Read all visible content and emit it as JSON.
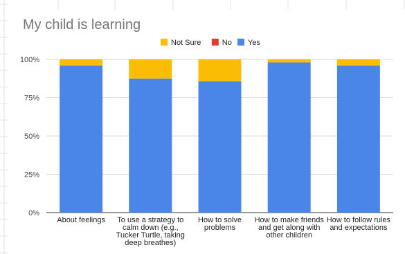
{
  "chart_data": {
    "type": "bar",
    "stacked": true,
    "normalized_percent": true,
    "title": "My child is learning",
    "categories": [
      "About feelings",
      "To use a strategy to calm down (e.g., Tucker Turtle, taking deep breathes)",
      "How to solve problems",
      "How to make friends and get along with other children",
      "How to follow rules and expectations"
    ],
    "category_lines": [
      [
        "About feelings"
      ],
      [
        "To use a strategy to",
        "calm down (e.g.,",
        "Tucker Turtle, taking",
        "deep breathes)"
      ],
      [
        "How to solve",
        "problems"
      ],
      [
        "How to make friends",
        "and get along with",
        "other children"
      ],
      [
        "How to follow rules",
        "and expectations"
      ]
    ],
    "series": [
      {
        "name": "Yes",
        "color": "#4a86e8",
        "values": [
          96,
          87.5,
          85.7,
          98,
          96
        ]
      },
      {
        "name": "No",
        "color": "#e53935",
        "values": [
          0,
          0,
          0,
          0,
          0
        ]
      },
      {
        "name": "Not Sure",
        "color": "#fbbc04",
        "values": [
          4,
          12.5,
          14.3,
          2,
          4
        ]
      }
    ],
    "legend": {
      "position": "top",
      "order": [
        "Not Sure",
        "No",
        "Yes"
      ]
    },
    "ylim": [
      0,
      100
    ],
    "y_ticks": [
      0,
      25,
      50,
      75,
      100
    ],
    "y_tick_labels": [
      "0%",
      "25%",
      "50%",
      "75%",
      "100%"
    ],
    "grid": true,
    "xlabel": "",
    "ylabel": ""
  }
}
